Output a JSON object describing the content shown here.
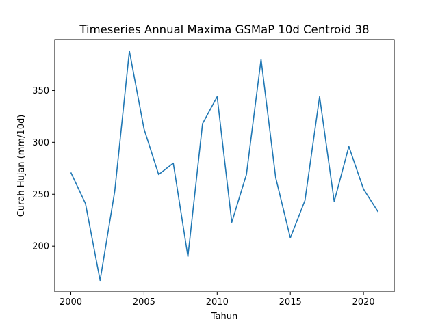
{
  "chart_data": {
    "type": "line",
    "title": "Timeseries Annual Maxima GSMaP 10d Centroid 38",
    "xlabel": "Tahun",
    "ylabel": "Curah Hujan (mm/10d)",
    "x": [
      2000,
      2001,
      2002,
      2003,
      2004,
      2005,
      2006,
      2007,
      2008,
      2009,
      2010,
      2011,
      2012,
      2013,
      2014,
      2015,
      2016,
      2017,
      2018,
      2019,
      2020,
      2021
    ],
    "series": [
      {
        "color": "#1f77b4",
        "values": [
          271,
          241,
          167,
          253,
          388,
          313,
          269,
          280,
          190,
          318,
          344,
          223,
          269,
          380,
          266,
          208,
          244,
          344,
          243,
          296,
          255,
          233
        ]
      }
    ],
    "xlim": [
      1998.9,
      2022.1
    ],
    "ylim": [
      156,
      399
    ],
    "xticks": [
      2000,
      2005,
      2010,
      2015,
      2020
    ],
    "yticks": [
      200,
      250,
      300,
      350
    ],
    "grid": false,
    "legend": "none"
  }
}
